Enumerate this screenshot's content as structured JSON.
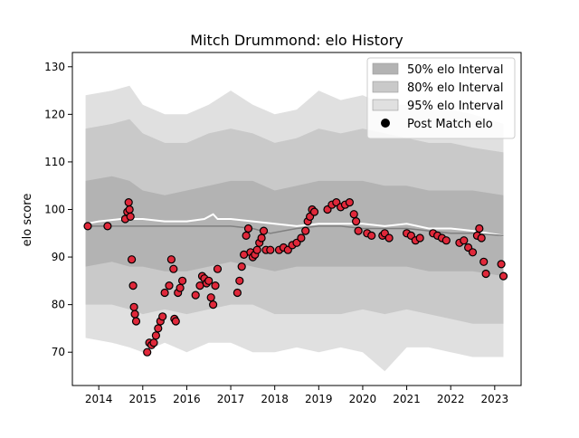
{
  "chart_data": {
    "type": "line",
    "title": "Mitch Drummond: elo History",
    "xlabel": "",
    "ylabel": "elo score",
    "xlim": [
      2013.4,
      2023.6
    ],
    "ylim": [
      63,
      133
    ],
    "x_ticks": [
      2014,
      2015,
      2016,
      2017,
      2018,
      2019,
      2020,
      2021,
      2022,
      2023
    ],
    "y_ticks": [
      70,
      80,
      90,
      100,
      110,
      120,
      130
    ],
    "grid": false,
    "legend": {
      "position": "top-right",
      "entries": [
        {
          "label": "50% elo Interval",
          "color": "#b3b3b3"
        },
        {
          "label": "80% elo Interval",
          "color": "#c9c9c9"
        },
        {
          "label": "95% elo Interval",
          "color": "#e0e0e0"
        },
        {
          "label": "Post Match elo",
          "color": "#000000"
        }
      ]
    },
    "bands": {
      "x": [
        2013.7,
        2014.3,
        2014.7,
        2015.0,
        2015.5,
        2016.0,
        2016.5,
        2017.0,
        2017.5,
        2018.0,
        2018.5,
        2019.0,
        2019.5,
        2020.0,
        2020.5,
        2021.0,
        2021.5,
        2022.0,
        2022.5,
        2023.2
      ],
      "p50_upper": [
        106,
        107,
        106,
        104,
        103,
        104,
        105,
        106,
        106,
        104,
        105,
        106,
        106,
        106,
        105,
        105,
        104,
        104,
        104,
        103
      ],
      "p50_lower": [
        88,
        89,
        88,
        88,
        87,
        87,
        88,
        89,
        88,
        87,
        88,
        88,
        88,
        88,
        88,
        88,
        87,
        87,
        87,
        86
      ],
      "p80_upper": [
        117,
        118,
        119,
        116,
        114,
        114,
        116,
        117,
        116,
        114,
        115,
        117,
        116,
        117,
        116,
        115,
        114,
        114,
        113,
        112
      ],
      "p80_lower": [
        80,
        80,
        79,
        78,
        79,
        78,
        79,
        80,
        80,
        78,
        78,
        78,
        78,
        79,
        78,
        79,
        78,
        77,
        76,
        76
      ],
      "p95_upper": [
        124,
        125,
        126,
        122,
        120,
        120,
        122,
        125,
        122,
        120,
        121,
        125,
        123,
        124,
        122,
        122,
        121,
        121,
        120,
        118
      ],
      "p95_lower": [
        73,
        72,
        71,
        70,
        72,
        70,
        72,
        72,
        70,
        70,
        71,
        70,
        71,
        70,
        66,
        71,
        71,
        70,
        69,
        69
      ]
    },
    "series": [
      {
        "color": "#ffffff",
        "x": [
          2013.7,
          2014.0,
          2014.5,
          2015.0,
          2015.5,
          2016.0,
          2016.4,
          2016.6,
          2016.7,
          2017.0,
          2017.5,
          2018.0,
          2018.5,
          2019.0,
          2019.5,
          2020.0,
          2020.5,
          2021.0,
          2021.5,
          2022.0,
          2022.5,
          2023.2
        ],
        "values": [
          97,
          97.5,
          98,
          98,
          97.5,
          97.5,
          98,
          99,
          98,
          98,
          97.5,
          97,
          96.5,
          97,
          97,
          97,
          96.5,
          97,
          96,
          96,
          95.5,
          94.5
        ]
      },
      {
        "color": "#808080",
        "x": [
          2013.7,
          2014.5,
          2015.0,
          2015.5,
          2016.0,
          2016.5,
          2017.0,
          2017.5,
          2017.9,
          2018.2,
          2018.5,
          2019.0,
          2019.5,
          2020.0,
          2020.5,
          2021.0,
          2021.5,
          2022.0,
          2022.5,
          2023.2
        ],
        "values": [
          96.5,
          96.5,
          96.5,
          96.5,
          96.5,
          96.5,
          96.5,
          96,
          95,
          95.5,
          96,
          96.5,
          96.5,
          96,
          96,
          96,
          95.5,
          95,
          95,
          94.5
        ]
      }
    ],
    "points": {
      "name": "Post Match elo",
      "x": [
        2013.75,
        2014.2,
        2014.6,
        2014.65,
        2014.68,
        2014.7,
        2014.72,
        2014.75,
        2014.78,
        2014.8,
        2014.82,
        2014.85,
        2015.1,
        2015.15,
        2015.2,
        2015.25,
        2015.3,
        2015.35,
        2015.4,
        2015.45,
        2015.5,
        2015.6,
        2015.65,
        2015.7,
        2015.72,
        2015.75,
        2015.8,
        2015.85,
        2015.9,
        2016.2,
        2016.3,
        2016.35,
        2016.4,
        2016.45,
        2016.5,
        2016.55,
        2016.6,
        2016.65,
        2016.7,
        2017.15,
        2017.2,
        2017.25,
        2017.3,
        2017.35,
        2017.4,
        2017.45,
        2017.5,
        2017.55,
        2017.6,
        2017.65,
        2017.7,
        2017.75,
        2017.8,
        2017.9,
        2018.1,
        2018.2,
        2018.3,
        2018.4,
        2018.5,
        2018.6,
        2018.7,
        2018.75,
        2018.8,
        2018.85,
        2018.9,
        2019.2,
        2019.3,
        2019.4,
        2019.5,
        2019.6,
        2019.7,
        2019.8,
        2019.85,
        2019.9,
        2020.1,
        2020.2,
        2020.45,
        2020.5,
        2020.6,
        2021.0,
        2021.1,
        2021.2,
        2021.3,
        2021.6,
        2021.7,
        2021.8,
        2021.9,
        2022.2,
        2022.3,
        2022.4,
        2022.5,
        2022.6,
        2022.65,
        2022.7,
        2022.75,
        2022.8,
        2023.15,
        2023.2
      ],
      "values": [
        96.5,
        96.5,
        98,
        99.5,
        101.5,
        100,
        98.5,
        89.5,
        84,
        79.5,
        78,
        76.5,
        70,
        72,
        71.5,
        72,
        73.5,
        75,
        76.5,
        77.5,
        82.5,
        84,
        89.5,
        87.5,
        77,
        76.5,
        82.5,
        83.5,
        85,
        82,
        84,
        86,
        85.5,
        84.5,
        85,
        81.5,
        80,
        84,
        87.5,
        82.5,
        85,
        88,
        90.5,
        94.5,
        96,
        91,
        90,
        90.5,
        91.5,
        93,
        94,
        95.5,
        91.5,
        91.5,
        91.5,
        92,
        91.5,
        92.5,
        93,
        94,
        95.5,
        97.5,
        98.5,
        100,
        99.5,
        100,
        101,
        101.5,
        100.5,
        101,
        101.5,
        99,
        97.5,
        95.5,
        95,
        94.5,
        94.5,
        95,
        94,
        95,
        94.5,
        93.5,
        94,
        95,
        94.5,
        94,
        93.5,
        93,
        93.5,
        92,
        91,
        94.5,
        96,
        94,
        89,
        86.5,
        88.5,
        86
      ],
      "color": "#e0283a",
      "edge": "#000000"
    }
  }
}
